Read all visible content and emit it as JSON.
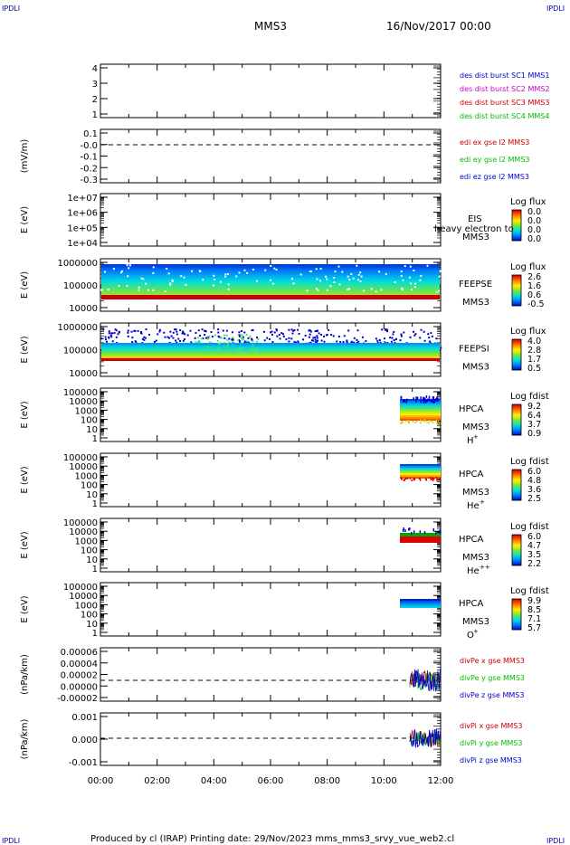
{
  "header": {
    "corner_tl": "IPDLI",
    "corner_tr": "IPDLI",
    "corner_bl": "IPDLI",
    "corner_br": "IPDLI",
    "spacecraft": "MMS3",
    "date": "16/Nov/2017 00:00"
  },
  "footer": {
    "text": "Produced by cl (IRAP)   Printing date: 29/Nov/2023   mms_mms3_srvy_vue_web2.cl"
  },
  "chart_data": {
    "type": "stack",
    "x_ticks": [
      "00:00",
      "02:00",
      "04:00",
      "06:00",
      "08:00",
      "10:00",
      "12:00"
    ],
    "x_range_hours": [
      0,
      12
    ],
    "colors": {
      "mms1": "#0000cc",
      "mms2": "#cc00cc",
      "mms3": "#cc0000",
      "mms4": "#00bb00"
    },
    "panels": [
      {
        "key": "p1",
        "type": "line",
        "yticks": [
          "4",
          "3",
          "2",
          "1"
        ],
        "ylabel": "",
        "legend": [
          {
            "text": "des dist burst SC1 MMS1",
            "color": "#0000cc"
          },
          {
            "text": "des dist burst SC2 MMS2",
            "color": "#cc00cc"
          },
          {
            "text": "des dist burst SC3 MMS3",
            "color": "#cc0000"
          },
          {
            "text": "des dist burst SC4 MMS4",
            "color": "#00bb00"
          }
        ]
      },
      {
        "key": "p2",
        "type": "line",
        "yticks": [
          "0.1",
          "-0.0",
          "-0.1",
          "-0.2",
          "-0.3"
        ],
        "ylabel": "(mV/m)",
        "legend": [
          {
            "text": "edi ex gse l2 MMS3",
            "color": "#cc0000"
          },
          {
            "text": "edi ey gse l2 MMS3",
            "color": "#00bb00"
          },
          {
            "text": "edi ez gse l2 MMS3",
            "color": "#0000cc"
          }
        ]
      },
      {
        "key": "p3",
        "type": "spectrogram",
        "yticks": [
          "1e+07",
          "1e+06",
          "1e+05",
          "1e+04"
        ],
        "ylabel": "E (eV)",
        "instrument": "EIS",
        "sc": "MMS3",
        "species": "",
        "overlay": "heavy electron to",
        "cbar_title": "Log flux",
        "cbar_ticks": [
          "0.0",
          "0.0",
          "0.0",
          "0.0"
        ]
      },
      {
        "key": "p4",
        "type": "spectrogram",
        "yticks": [
          "1000000",
          "100000",
          "10000"
        ],
        "ylabel": "E (eV)",
        "instrument": "FEEPSE",
        "sc": "MMS3",
        "species": "",
        "cbar_title": "Log flux",
        "cbar_ticks": [
          "2.6",
          "1.6",
          "0.6",
          "-0.5"
        ]
      },
      {
        "key": "p5",
        "type": "spectrogram",
        "yticks": [
          "1000000",
          "100000",
          "10000"
        ],
        "ylabel": "E (eV)",
        "instrument": "FEEPSI",
        "sc": "MMS3",
        "species": "",
        "cbar_title": "Log flux",
        "cbar_ticks": [
          "4.0",
          "2.8",
          "1.7",
          "0.5"
        ]
      },
      {
        "key": "p6",
        "type": "spectrogram",
        "yticks": [
          "100000",
          "10000",
          "1000",
          "100",
          "10",
          "1"
        ],
        "ylabel": "E (eV)",
        "instrument": "HPCA",
        "sc": "MMS3",
        "species": "H",
        "species_sup": "+",
        "cbar_title": "Log fdist",
        "cbar_ticks": [
          "9.2",
          "6.4",
          "3.7",
          "0.9"
        ]
      },
      {
        "key": "p7",
        "type": "spectrogram",
        "yticks": [
          "100000",
          "10000",
          "1000",
          "100",
          "10",
          "1"
        ],
        "ylabel": "E (eV)",
        "instrument": "HPCA",
        "sc": "MMS3",
        "species": "He",
        "species_sup": "+",
        "cbar_title": "Log fdist",
        "cbar_ticks": [
          "6.0",
          "4.8",
          "3.6",
          "2.5"
        ]
      },
      {
        "key": "p8",
        "type": "spectrogram",
        "yticks": [
          "100000",
          "10000",
          "1000",
          "100",
          "10",
          "1"
        ],
        "ylabel": "E (eV)",
        "instrument": "HPCA",
        "sc": "MMS3",
        "species": "He",
        "species_sup": "++",
        "cbar_title": "Log fdist",
        "cbar_ticks": [
          "6.0",
          "4.7",
          "3.5",
          "2.2"
        ]
      },
      {
        "key": "p9",
        "type": "spectrogram",
        "yticks": [
          "100000",
          "10000",
          "1000",
          "100",
          "10",
          "1"
        ],
        "ylabel": "E (eV)",
        "instrument": "HPCA",
        "sc": "MMS3",
        "species": "O",
        "species_sup": "+",
        "cbar_title": "Log fdist",
        "cbar_ticks": [
          "9.9",
          "8.5",
          "7.1",
          "5.7"
        ]
      },
      {
        "key": "p10",
        "type": "line",
        "yticks": [
          "0.00006",
          "0.00004",
          "0.00002",
          "0.00000",
          "-0.00002"
        ],
        "ylabel": "(nPa/km)",
        "legend": [
          {
            "text": "divPe x gse MMS3",
            "color": "#cc0000"
          },
          {
            "text": "divPe y gse MMS3",
            "color": "#00bb00"
          },
          {
            "text": "divPe z gse MMS3",
            "color": "#0000cc"
          }
        ]
      },
      {
        "key": "p11",
        "type": "line",
        "yticks": [
          "0.001",
          "0.000",
          "-0.001"
        ],
        "ylabel": "(nPa/km)",
        "legend": [
          {
            "text": "divPi x gse MMS3",
            "color": "#cc0000"
          },
          {
            "text": "divPi y gse MMS3",
            "color": "#00bb00"
          },
          {
            "text": "divPi z gse MMS3",
            "color": "#0000cc"
          }
        ]
      }
    ]
  }
}
